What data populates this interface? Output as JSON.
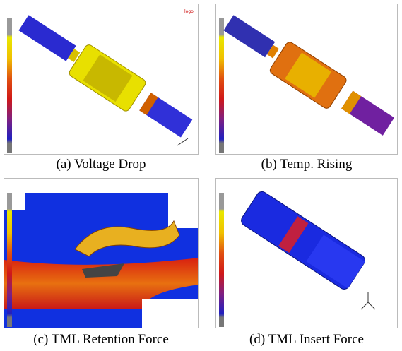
{
  "figure": {
    "panels": [
      {
        "caption": "(a) Voltage Drop"
      },
      {
        "caption": "(b) Temp. Rising"
      },
      {
        "caption": "(c) TML Retention Force"
      },
      {
        "caption": "(d) TML Insert Force"
      }
    ]
  }
}
